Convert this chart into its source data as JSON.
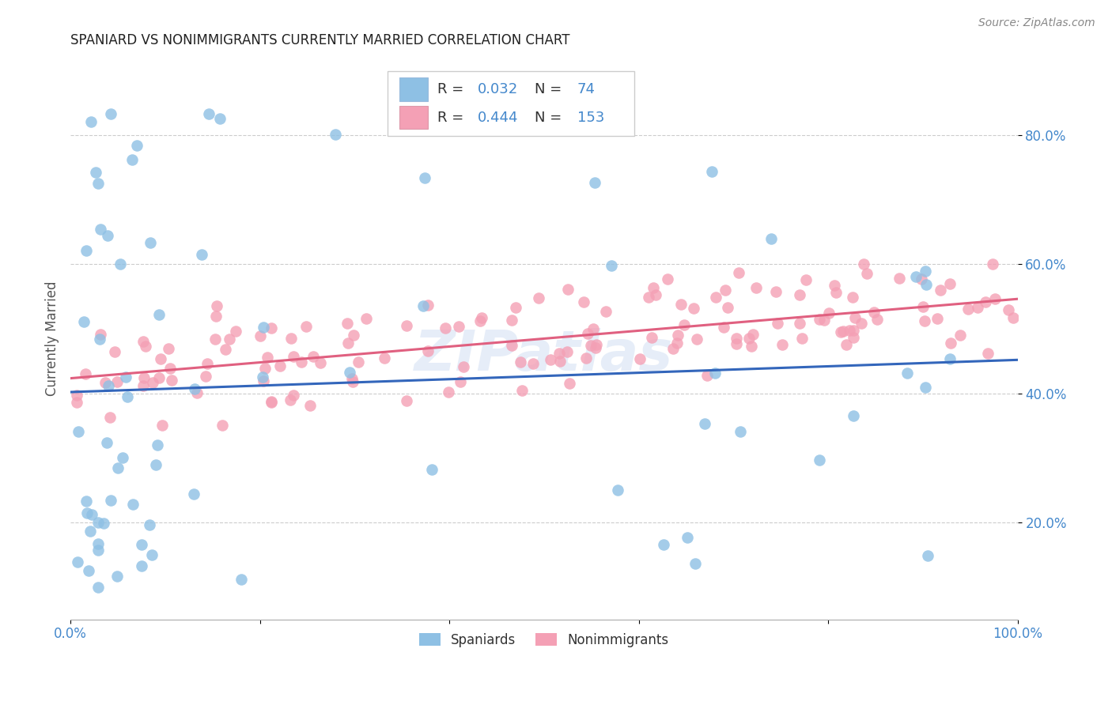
{
  "title": "SPANIARD VS NONIMMIGRANTS CURRENTLY MARRIED CORRELATION CHART",
  "source": "Source: ZipAtlas.com",
  "ylabel": "Currently Married",
  "color_spaniard": "#8ec0e4",
  "color_nonimmigrant": "#f4a0b5",
  "color_line_spaniard": "#3366bb",
  "color_line_nonimmigrant": "#e06080",
  "color_tick": "#4488cc",
  "watermark": "ZIPatlas",
  "legend_r1": "0.032",
  "legend_n1": "74",
  "legend_r2": "0.444",
  "legend_n2": "153",
  "sp_seed": 42,
  "ni_seed": 99,
  "xlim": [
    0.0,
    1.0
  ],
  "ylim": [
    0.05,
    0.92
  ]
}
